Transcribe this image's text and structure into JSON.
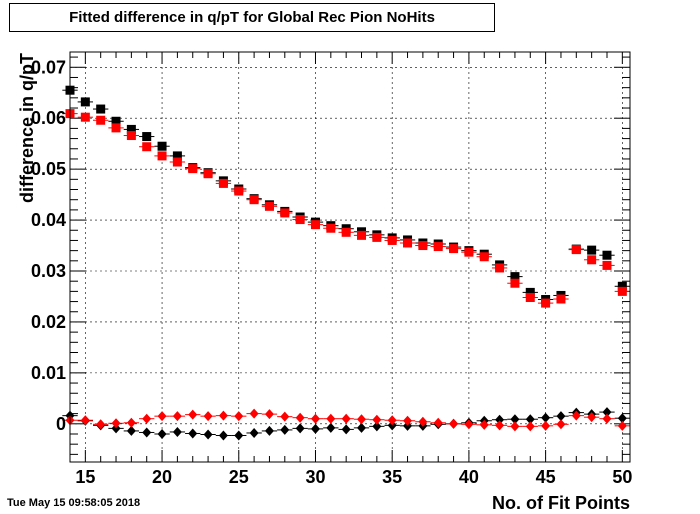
{
  "chart_data": {
    "type": "scatter",
    "title": "Fitted difference in q/pT for Global Rec Pion NoHits",
    "xlabel": "No. of Fit Points",
    "ylabel": "difference in q/pT",
    "xlim": [
      14,
      50.5
    ],
    "ylim": [
      -0.0075,
      0.073
    ],
    "x_ticks": [
      15,
      20,
      25,
      30,
      35,
      40,
      45,
      50
    ],
    "y_ticks": [
      0,
      0.01,
      0.02,
      0.03,
      0.04,
      0.05,
      0.06,
      0.07
    ],
    "x_tick_labels": [
      "15",
      "20",
      "25",
      "30",
      "35",
      "40",
      "45",
      "50"
    ],
    "y_tick_labels": [
      "0",
      "0.01",
      "0.02",
      "0.03",
      "0.04",
      "0.05",
      "0.06",
      "0.07"
    ],
    "grid": true,
    "series": [
      {
        "marker": "square",
        "color": "#000000",
        "points": [
          [
            14,
            0.0655
          ],
          [
            15,
            0.0632
          ],
          [
            16,
            0.0618
          ],
          [
            17,
            0.0594
          ],
          [
            18,
            0.0578
          ],
          [
            19,
            0.0564
          ],
          [
            20,
            0.0545
          ],
          [
            21,
            0.0526
          ],
          [
            22,
            0.0503
          ],
          [
            23,
            0.0493
          ],
          [
            24,
            0.0477
          ],
          [
            25,
            0.0461
          ],
          [
            26,
            0.0442
          ],
          [
            27,
            0.043
          ],
          [
            28,
            0.0417
          ],
          [
            29,
            0.0406
          ],
          [
            30,
            0.0396
          ],
          [
            31,
            0.0389
          ],
          [
            32,
            0.0383
          ],
          [
            33,
            0.0377
          ],
          [
            34,
            0.0371
          ],
          [
            35,
            0.0365
          ],
          [
            36,
            0.0361
          ],
          [
            37,
            0.0355
          ],
          [
            38,
            0.0353
          ],
          [
            39,
            0.0347
          ],
          [
            40,
            0.034
          ],
          [
            41,
            0.0333
          ],
          [
            42,
            0.0312
          ],
          [
            43,
            0.0289
          ],
          [
            44,
            0.0258
          ],
          [
            45,
            0.0244
          ],
          [
            46,
            0.0252
          ],
          [
            47,
            0.0343
          ],
          [
            48,
            0.0341
          ],
          [
            49,
            0.0331
          ],
          [
            50,
            0.027
          ]
        ]
      },
      {
        "marker": "square",
        "color": "#ff0000",
        "points": [
          [
            14,
            0.0609
          ],
          [
            15,
            0.0602
          ],
          [
            16,
            0.0596
          ],
          [
            17,
            0.0581
          ],
          [
            18,
            0.0566
          ],
          [
            19,
            0.0544
          ],
          [
            20,
            0.0526
          ],
          [
            21,
            0.0514
          ],
          [
            22,
            0.0501
          ],
          [
            23,
            0.0491
          ],
          [
            24,
            0.0472
          ],
          [
            25,
            0.0457
          ],
          [
            26,
            0.044
          ],
          [
            27,
            0.0427
          ],
          [
            28,
            0.0414
          ],
          [
            29,
            0.0401
          ],
          [
            30,
            0.0391
          ],
          [
            31,
            0.0384
          ],
          [
            32,
            0.0376
          ],
          [
            33,
            0.037
          ],
          [
            34,
            0.0366
          ],
          [
            35,
            0.036
          ],
          [
            36,
            0.0355
          ],
          [
            37,
            0.035
          ],
          [
            38,
            0.0348
          ],
          [
            39,
            0.0344
          ],
          [
            40,
            0.0337
          ],
          [
            41,
            0.0328
          ],
          [
            42,
            0.0306
          ],
          [
            43,
            0.0276
          ],
          [
            44,
            0.0248
          ],
          [
            45,
            0.0237
          ],
          [
            46,
            0.0245
          ],
          [
            47,
            0.0342
          ],
          [
            48,
            0.0322
          ],
          [
            49,
            0.0311
          ],
          [
            50,
            0.026
          ]
        ]
      },
      {
        "marker": "diamond",
        "color": "#000000",
        "points": [
          [
            14,
            0.0016
          ],
          [
            15,
            0.0006
          ],
          [
            16,
            -0.0003
          ],
          [
            17,
            -0.0009
          ],
          [
            18,
            -0.0014
          ],
          [
            19,
            -0.0017
          ],
          [
            20,
            -0.002
          ],
          [
            21,
            -0.0016
          ],
          [
            22,
            -0.0019
          ],
          [
            23,
            -0.0021
          ],
          [
            24,
            -0.0023
          ],
          [
            25,
            -0.0023
          ],
          [
            26,
            -0.0018
          ],
          [
            27,
            -0.0014
          ],
          [
            28,
            -0.0012
          ],
          [
            29,
            -0.0009
          ],
          [
            30,
            -0.001
          ],
          [
            31,
            -0.0008
          ],
          [
            32,
            -0.0011
          ],
          [
            33,
            -0.0008
          ],
          [
            34,
            -0.0005
          ],
          [
            35,
            -0.0003
          ],
          [
            36,
            -0.0004
          ],
          [
            37,
            -0.0004
          ],
          [
            38,
            -0.0001
          ],
          [
            39,
            0.0
          ],
          [
            40,
            0.0002
          ],
          [
            41,
            0.0006
          ],
          [
            42,
            0.0008
          ],
          [
            43,
            0.0009
          ],
          [
            44,
            0.0009
          ],
          [
            45,
            0.0012
          ],
          [
            46,
            0.0015
          ],
          [
            47,
            0.0022
          ],
          [
            48,
            0.0019
          ],
          [
            49,
            0.0023
          ],
          [
            50,
            0.0011
          ]
        ]
      },
      {
        "marker": "diamond",
        "color": "#ff0000",
        "points": [
          [
            14,
            0.0007
          ],
          [
            15,
            0.0007
          ],
          [
            16,
            -0.0001
          ],
          [
            17,
            0.0001
          ],
          [
            18,
            0.0002
          ],
          [
            19,
            0.001
          ],
          [
            20,
            0.0015
          ],
          [
            21,
            0.0015
          ],
          [
            22,
            0.0018
          ],
          [
            23,
            0.0015
          ],
          [
            24,
            0.0016
          ],
          [
            25,
            0.0015
          ],
          [
            26,
            0.002
          ],
          [
            27,
            0.0019
          ],
          [
            28,
            0.0014
          ],
          [
            29,
            0.0012
          ],
          [
            30,
            0.001
          ],
          [
            31,
            0.001
          ],
          [
            32,
            0.001
          ],
          [
            33,
            0.0009
          ],
          [
            34,
            0.0008
          ],
          [
            35,
            0.0007
          ],
          [
            36,
            0.0006
          ],
          [
            37,
            0.0004
          ],
          [
            38,
            0.0002
          ],
          [
            39,
            0.0
          ],
          [
            40,
            -0.0001
          ],
          [
            41,
            -0.0002
          ],
          [
            42,
            -0.0003
          ],
          [
            43,
            -0.0005
          ],
          [
            44,
            -0.0005
          ],
          [
            45,
            -0.0004
          ],
          [
            46,
            -0.0001
          ],
          [
            47,
            0.0016
          ],
          [
            48,
            0.0013
          ],
          [
            49,
            0.001
          ],
          [
            50,
            -0.0004
          ]
        ]
      }
    ]
  },
  "footer": {
    "date": "Tue May 15 09:58:05 2018"
  }
}
